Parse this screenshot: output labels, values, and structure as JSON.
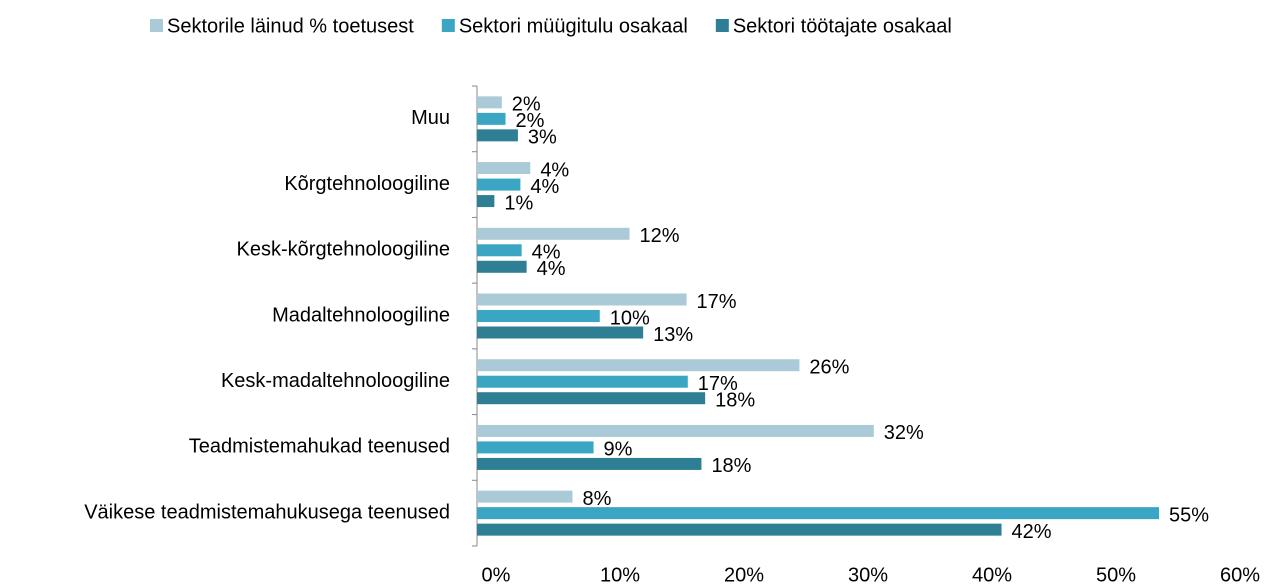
{
  "chart_data": {
    "type": "hbar",
    "categories": [
      "Muu",
      "Kõrgtehnoloogiline",
      "Kesk-kõrgtehnoloogiline",
      "Madaltehnoloogiline",
      "Kesk-madaltehnoloogiline",
      "Teadmistemahukad teenused",
      "Väikese teadmistemahukusega teenused"
    ],
    "series": [
      {
        "name": "Sektorile läinud % toetusest",
        "color": "#a9cad6",
        "values": [
          2,
          4.3,
          12.3,
          16.9,
          26,
          32,
          7.7
        ],
        "value_labels": [
          "2%",
          "4%",
          "12%",
          "17%",
          "26%",
          "32%",
          "8%"
        ]
      },
      {
        "name": "Sektori müügitulu osakaal",
        "color": "#3ba6c3",
        "values": [
          2.3,
          3.5,
          3.6,
          9.9,
          17,
          9.4,
          55
        ],
        "value_labels": [
          "2%",
          "4%",
          "4%",
          "10%",
          "17%",
          "9%",
          "55%"
        ]
      },
      {
        "name": "Sektori töötajate osakaal",
        "color": "#2e7f93",
        "values": [
          3.3,
          1.4,
          4,
          13.4,
          18.4,
          18.1,
          42.3
        ],
        "value_labels": [
          "3%",
          "1%",
          "4%",
          "13%",
          "18%",
          "18%",
          "42%"
        ]
      }
    ],
    "xlim": [
      0,
      60
    ],
    "xticks": [
      {
        "value": 0,
        "label": "0%"
      },
      {
        "value": 10,
        "label": "10%"
      },
      {
        "value": 20,
        "label": "20%"
      },
      {
        "value": 30,
        "label": "30%"
      },
      {
        "value": 40,
        "label": "40%"
      },
      {
        "value": 50,
        "label": "50%"
      },
      {
        "value": 60,
        "label": "60%"
      }
    ],
    "legend": "top",
    "grid": false
  }
}
